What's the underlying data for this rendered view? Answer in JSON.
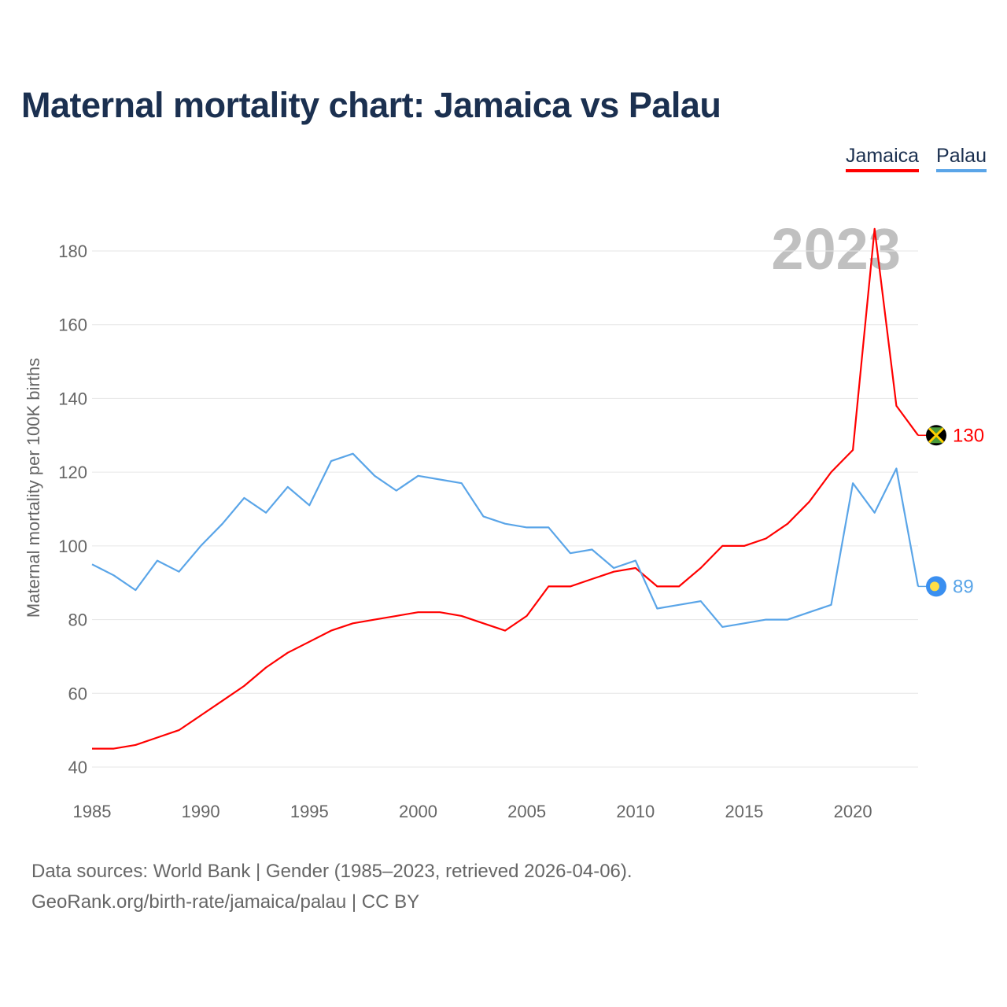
{
  "title": "Maternal mortality chart: Jamaica vs Palau",
  "chart_data": {
    "type": "line",
    "title": "Maternal mortality chart: Jamaica vs Palau",
    "ylabel": "Maternal mortality per 100K births",
    "xlabel": "",
    "year_watermark": "2023",
    "xlim": [
      1985,
      2023
    ],
    "ylim": [
      40,
      180
    ],
    "xticks": [
      "1985",
      "1990",
      "1995",
      "2000",
      "2005",
      "2010",
      "2015",
      "2020"
    ],
    "yticks": [
      "40",
      "60",
      "80",
      "100",
      "120",
      "140",
      "160",
      "180"
    ],
    "grid": true,
    "legend_position": "top-right",
    "x": [
      1985,
      1986,
      1987,
      1988,
      1989,
      1990,
      1991,
      1992,
      1993,
      1994,
      1995,
      1996,
      1997,
      1998,
      1999,
      2000,
      2001,
      2002,
      2003,
      2004,
      2005,
      2006,
      2007,
      2008,
      2009,
      2010,
      2011,
      2012,
      2013,
      2014,
      2015,
      2016,
      2017,
      2018,
      2019,
      2020,
      2021,
      2022,
      2023
    ],
    "series": [
      {
        "name": "Jamaica",
        "color": "#ff0000",
        "end_label": "130",
        "values": [
          45,
          45,
          46,
          48,
          50,
          54,
          58,
          62,
          67,
          71,
          74,
          77,
          79,
          80,
          81,
          82,
          82,
          81,
          79,
          77,
          81,
          89,
          89,
          91,
          93,
          94,
          89,
          89,
          94,
          100,
          100,
          102,
          106,
          112,
          120,
          126,
          186,
          138,
          130
        ]
      },
      {
        "name": "Palau",
        "color": "#5aa5e8",
        "end_label": "89",
        "values": [
          95,
          92,
          88,
          96,
          93,
          100,
          106,
          113,
          109,
          116,
          111,
          123,
          125,
          119,
          115,
          119,
          118,
          117,
          108,
          106,
          105,
          105,
          98,
          99,
          94,
          96,
          83,
          84,
          85,
          78,
          79,
          80,
          80,
          82,
          84,
          117,
          109,
          121,
          89
        ]
      }
    ]
  },
  "footer": {
    "line1": "Data sources: World Bank | Gender (1985–2023, retrieved 2026-04-06).",
    "line2": "GeoRank.org/birth-rate/jamaica/palau | CC BY"
  }
}
